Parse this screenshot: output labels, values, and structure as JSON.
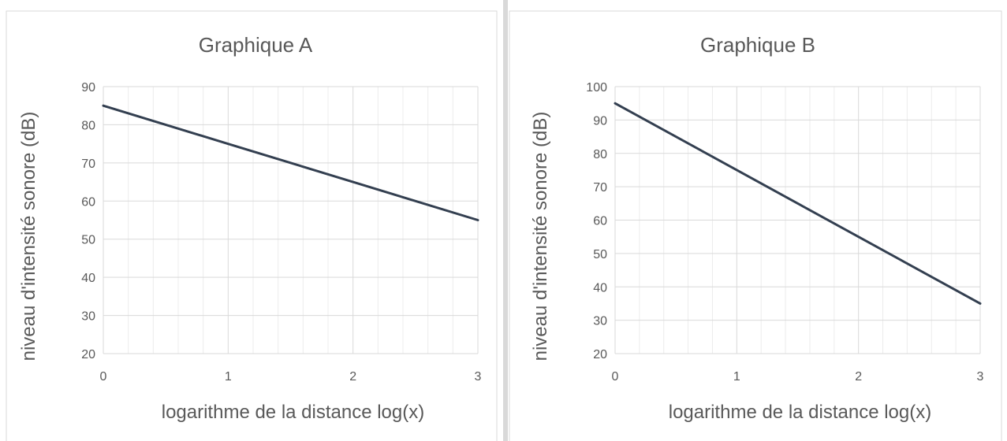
{
  "chart_data": [
    {
      "type": "line",
      "title": "Graphique A",
      "xlabel": "logarithme de la distance log(x)",
      "ylabel": "niveau d'intensité sonore (dB)",
      "xlim": [
        0,
        3
      ],
      "ylim": [
        20,
        90
      ],
      "x_ticks": [
        0,
        1,
        2,
        3
      ],
      "y_ticks": [
        20,
        30,
        40,
        50,
        60,
        70,
        80,
        90
      ],
      "grid": true,
      "series": [
        {
          "x": [
            0,
            1,
            2,
            3
          ],
          "y": [
            85,
            75,
            65,
            55
          ],
          "color": "#333f50"
        }
      ]
    },
    {
      "type": "line",
      "title": "Graphique B",
      "xlabel": "logarithme de la distance log(x)",
      "ylabel": "niveau d'intensité sonore (dB)",
      "xlim": [
        0,
        3
      ],
      "ylim": [
        20,
        100
      ],
      "x_ticks": [
        0,
        1,
        2,
        3
      ],
      "y_ticks": [
        20,
        30,
        40,
        50,
        60,
        70,
        80,
        90,
        100
      ],
      "grid": true,
      "series": [
        {
          "x": [
            0,
            1,
            2,
            3
          ],
          "y": [
            95,
            75,
            55,
            35
          ],
          "color": "#333f50"
        }
      ]
    }
  ]
}
